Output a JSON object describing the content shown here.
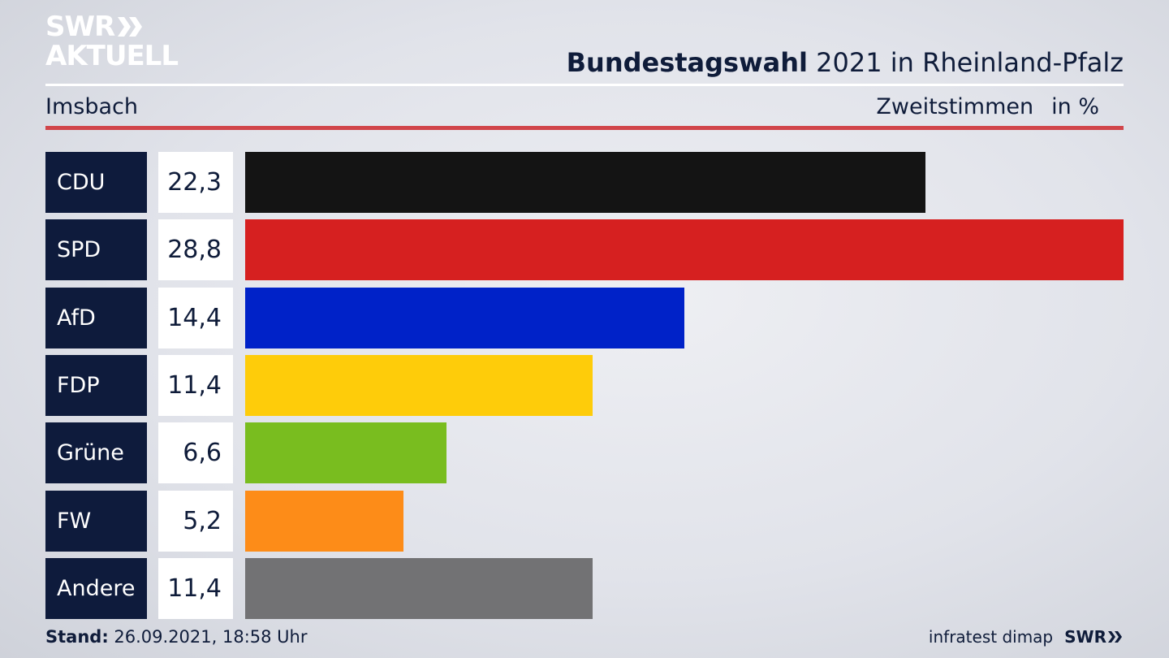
{
  "header": {
    "logo_line1": "SWR",
    "logo_line2": "AKTUELL",
    "title_bold": "Bundestagswahl",
    "title_rest": " 2021 in Rheinland-Pfalz",
    "location": "Imsbach",
    "measure": "Zweitstimmen",
    "unit": "in %"
  },
  "chart_data": {
    "type": "bar",
    "orientation": "horizontal",
    "categories": [
      "CDU",
      "SPD",
      "AfD",
      "FDP",
      "Grüne",
      "FW",
      "Andere"
    ],
    "values": [
      22.3,
      28.8,
      14.4,
      11.4,
      6.6,
      5.2,
      11.4
    ],
    "value_labels": [
      "22,3",
      "28,8",
      "14,4",
      "11,4",
      "6,6",
      "5,2",
      "11,4"
    ],
    "colors": [
      "#141414",
      "#d62020",
      "#0022c8",
      "#fecc0a",
      "#79bd1f",
      "#fd8c18",
      "#727274"
    ],
    "xlim": [
      0,
      28.8
    ],
    "grid": false,
    "legend": "none"
  },
  "footer": {
    "stand_label": "Stand:",
    "stand_value": " 26.09.2021, 18:58 Uhr",
    "source": "infratest dimap",
    "brand": "SWR"
  }
}
